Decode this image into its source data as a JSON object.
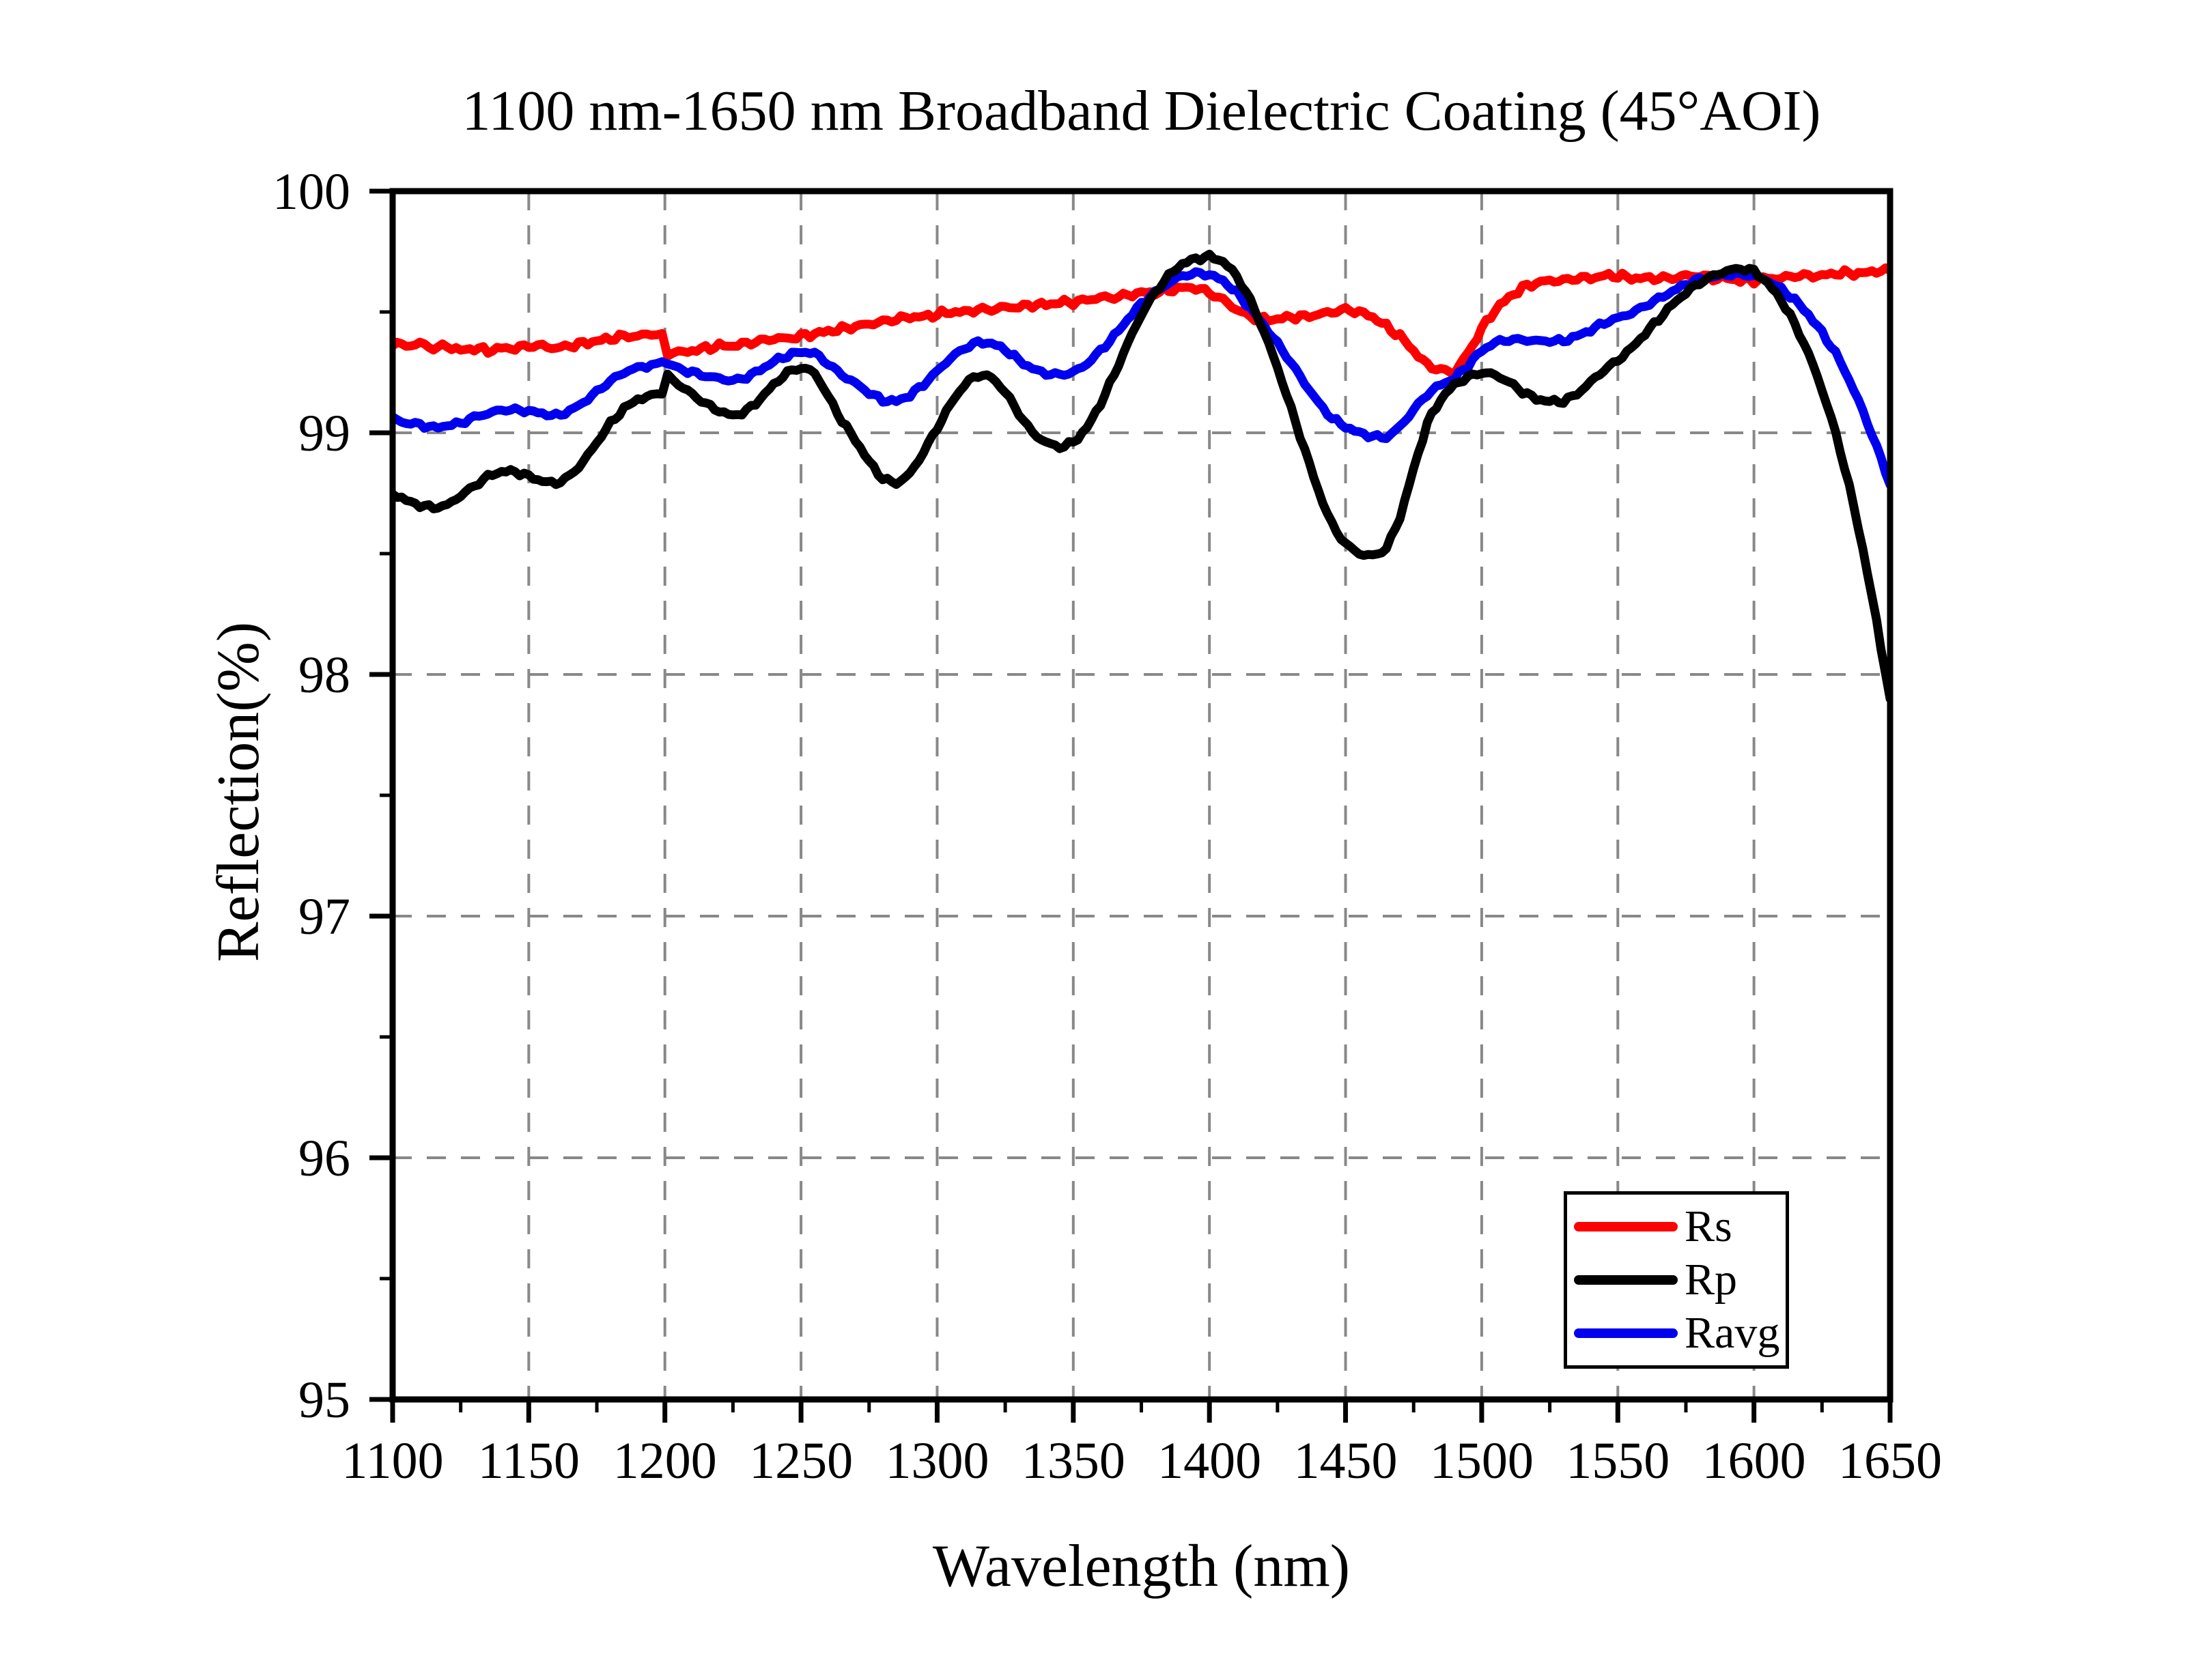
{
  "title": "1100 nm-1650 nm Broadband Dielectric Coating (45°AOI)",
  "axes": {
    "x": {
      "label": "Wavelength (nm)",
      "min": 1100,
      "max": 1650,
      "major_ticks": [
        1100,
        1150,
        1200,
        1250,
        1300,
        1350,
        1400,
        1450,
        1500,
        1550,
        1600,
        1650
      ],
      "minor_tick_start": 1125,
      "minor_tick_step": 50
    },
    "y": {
      "label": "Reflection(%)",
      "min": 95,
      "max": 100,
      "major_ticks": [
        95,
        96,
        97,
        98,
        99,
        100
      ],
      "minor_tick_start": 95.5,
      "minor_tick_step": 1
    }
  },
  "legend": {
    "entries": [
      {
        "label": "Rs",
        "color": "#ff0000"
      },
      {
        "label": "Rp",
        "color": "#000000"
      },
      {
        "label": "Ravg",
        "color": "#0000ee"
      }
    ]
  },
  "style": {
    "grid_color": "#888888",
    "frame_color": "#000000",
    "background": "#ffffff"
  },
  "chart_data": {
    "type": "line",
    "title": "1100 nm-1650 nm Broadband Dielectric Coating (45°AOI)",
    "xlabel": "Wavelength (nm)",
    "ylabel": "Reflection(%)",
    "xlim": [
      1100,
      1650
    ],
    "ylim": [
      95,
      100
    ],
    "grid": "dashed",
    "legend_position": "lower right",
    "note_step_artifact_nm": 1200,
    "x": [
      1100,
      1105,
      1110,
      1115,
      1120,
      1125,
      1130,
      1135,
      1140,
      1145,
      1150,
      1155,
      1160,
      1165,
      1170,
      1175,
      1180,
      1185,
      1190,
      1195,
      1199,
      1201,
      1205,
      1210,
      1215,
      1220,
      1225,
      1230,
      1235,
      1240,
      1245,
      1250,
      1255,
      1260,
      1265,
      1270,
      1275,
      1280,
      1285,
      1290,
      1295,
      1300,
      1305,
      1310,
      1315,
      1320,
      1325,
      1330,
      1335,
      1340,
      1345,
      1350,
      1355,
      1360,
      1365,
      1370,
      1375,
      1380,
      1385,
      1390,
      1395,
      1400,
      1405,
      1410,
      1415,
      1420,
      1425,
      1430,
      1435,
      1440,
      1445,
      1450,
      1455,
      1460,
      1465,
      1470,
      1475,
      1480,
      1485,
      1490,
      1495,
      1500,
      1505,
      1510,
      1515,
      1520,
      1525,
      1530,
      1535,
      1540,
      1545,
      1550,
      1555,
      1560,
      1565,
      1570,
      1575,
      1580,
      1585,
      1590,
      1595,
      1600,
      1605,
      1610,
      1615,
      1620,
      1625,
      1630,
      1635,
      1640,
      1645,
      1650
    ],
    "series": [
      {
        "name": "Rs",
        "color": "#ff0000",
        "noise": 0.016,
        "values": [
          99.37,
          99.36,
          99.37,
          99.35,
          99.36,
          99.34,
          99.35,
          99.34,
          99.35,
          99.35,
          99.36,
          99.36,
          99.35,
          99.36,
          99.37,
          99.38,
          99.39,
          99.4,
          99.4,
          99.41,
          99.41,
          99.32,
          99.33,
          99.34,
          99.35,
          99.36,
          99.36,
          99.37,
          99.38,
          99.39,
          99.39,
          99.4,
          99.41,
          99.42,
          99.43,
          99.44,
          99.45,
          99.46,
          99.47,
          99.48,
          99.48,
          99.49,
          99.5,
          99.5,
          99.51,
          99.51,
          99.52,
          99.52,
          99.53,
          99.53,
          99.54,
          99.54,
          99.55,
          99.56,
          99.56,
          99.57,
          99.58,
          99.58,
          99.59,
          99.6,
          99.6,
          99.58,
          99.55,
          99.51,
          99.48,
          99.47,
          99.47,
          99.48,
          99.48,
          99.49,
          99.5,
          99.51,
          99.5,
          99.48,
          99.44,
          99.4,
          99.34,
          99.28,
          99.26,
          99.25,
          99.33,
          99.43,
          99.51,
          99.56,
          99.6,
          99.62,
          99.63,
          99.63,
          99.64,
          99.64,
          99.65,
          99.65,
          99.64,
          99.64,
          99.64,
          99.64,
          99.65,
          99.65,
          99.64,
          99.64,
          99.63,
          99.63,
          99.64,
          99.64,
          99.65,
          99.65,
          99.65,
          99.66,
          99.66,
          99.66,
          99.67,
          99.67
        ]
      },
      {
        "name": "Rp",
        "color": "#000000",
        "noise": 0.012,
        "values": [
          98.75,
          98.72,
          98.7,
          98.69,
          98.7,
          98.74,
          98.78,
          98.82,
          98.84,
          98.84,
          98.82,
          98.8,
          98.79,
          98.82,
          98.88,
          98.96,
          99.04,
          99.1,
          99.14,
          99.15,
          99.16,
          99.24,
          99.2,
          99.16,
          99.12,
          99.09,
          99.07,
          99.09,
          99.14,
          99.2,
          99.25,
          99.27,
          99.25,
          99.15,
          99.05,
          98.97,
          98.88,
          98.81,
          98.79,
          98.83,
          98.92,
          99.02,
          99.12,
          99.2,
          99.24,
          99.23,
          99.17,
          99.08,
          99.0,
          98.96,
          98.94,
          98.96,
          99.02,
          99.12,
          99.24,
          99.37,
          99.49,
          99.58,
          99.65,
          99.7,
          99.72,
          99.73,
          99.71,
          99.65,
          99.55,
          99.42,
          99.27,
          99.1,
          98.93,
          98.76,
          98.62,
          98.54,
          98.5,
          98.49,
          98.52,
          98.65,
          98.85,
          99.04,
          99.14,
          99.2,
          99.23,
          99.25,
          99.24,
          99.21,
          99.17,
          99.14,
          99.13,
          99.13,
          99.16,
          99.21,
          99.26,
          99.3,
          99.35,
          99.41,
          99.47,
          99.53,
          99.58,
          99.62,
          99.65,
          99.67,
          99.68,
          99.67,
          99.62,
          99.55,
          99.45,
          99.33,
          99.18,
          99.0,
          98.78,
          98.52,
          98.22,
          97.9
        ]
      },
      {
        "name": "Ravg",
        "color": "#0000ee",
        "noise": 0.012,
        "values": [
          99.06,
          99.04,
          99.035,
          99.02,
          99.03,
          99.04,
          99.065,
          99.08,
          99.095,
          99.095,
          99.09,
          99.08,
          99.07,
          99.09,
          99.125,
          99.17,
          99.215,
          99.25,
          99.27,
          99.28,
          99.285,
          99.28,
          99.265,
          99.25,
          99.235,
          99.225,
          99.215,
          99.23,
          99.26,
          99.295,
          99.32,
          99.335,
          99.33,
          99.285,
          99.24,
          99.205,
          99.165,
          99.135,
          99.13,
          99.155,
          99.2,
          99.255,
          99.31,
          99.35,
          99.375,
          99.37,
          99.345,
          99.3,
          99.265,
          99.245,
          99.24,
          99.25,
          99.285,
          99.34,
          99.4,
          99.47,
          99.535,
          99.58,
          99.62,
          99.65,
          99.66,
          99.655,
          99.63,
          99.58,
          99.515,
          99.445,
          99.37,
          99.29,
          99.205,
          99.125,
          99.06,
          99.025,
          99.0,
          98.985,
          98.98,
          99.025,
          99.095,
          99.16,
          99.2,
          99.225,
          99.28,
          99.34,
          99.375,
          99.385,
          99.385,
          99.38,
          99.38,
          99.38,
          99.4,
          99.425,
          99.455,
          99.475,
          99.495,
          99.525,
          99.555,
          99.585,
          99.615,
          99.635,
          99.645,
          99.655,
          99.655,
          99.65,
          99.63,
          99.595,
          99.55,
          99.49,
          99.415,
          99.33,
          99.22,
          99.09,
          98.945,
          98.785
        ]
      }
    ]
  }
}
